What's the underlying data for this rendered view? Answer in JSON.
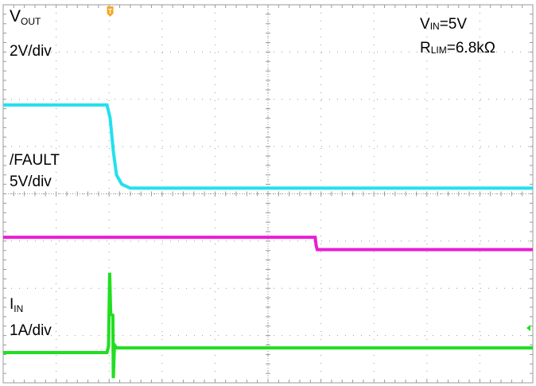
{
  "colors": {
    "vout": "#22E1EE",
    "fault": "#E81ED4",
    "iin": "#21DE21",
    "grid": "#9A9A9A",
    "trigger": "#F5A623"
  },
  "annotations": {
    "vout_main": "V",
    "vout_sub": "OUT",
    "vout_scale": "2V/div",
    "fault_name": "/FAULT",
    "fault_scale": "5V/div",
    "iin_main": "I",
    "iin_sub": "IN",
    "iin_scale": "1A/div",
    "vin_main": "V",
    "vin_sub": "IN",
    "vin_value": "=5V",
    "rlim_main": "R",
    "rlim_sub": "LIM",
    "rlim_value": "=6.8kΩ"
  },
  "chart_data": {
    "type": "line",
    "x_divisions": 10,
    "y_divisions": 8,
    "grid": true,
    "trigger_marker": "T",
    "series": [
      {
        "name": "VOUT",
        "scale": "2V/div",
        "points": [
          [
            0,
            5.88
          ],
          [
            1.96,
            5.88
          ],
          [
            2.02,
            5.6
          ],
          [
            2.08,
            4.9
          ],
          [
            2.14,
            4.4
          ],
          [
            2.24,
            4.2
          ],
          [
            2.4,
            4.12
          ],
          [
            10,
            4.12
          ]
        ]
      },
      {
        "name": "/FAULT",
        "scale": "5V/div",
        "points": [
          [
            0,
            3.08
          ],
          [
            5.89,
            3.08
          ],
          [
            5.91,
            2.9
          ],
          [
            5.93,
            2.82
          ],
          [
            10,
            2.82
          ]
        ]
      },
      {
        "name": "IIN",
        "scale": "1A/div",
        "points": [
          [
            0,
            0.64
          ],
          [
            1.96,
            0.64
          ],
          [
            1.99,
            0.78
          ],
          [
            2.01,
            2.33
          ],
          [
            2.03,
            1.45
          ],
          [
            2.07,
            1.43
          ],
          [
            2.08,
            0.1
          ],
          [
            2.1,
            0.8
          ],
          [
            2.14,
            0.74
          ],
          [
            10,
            0.74
          ]
        ]
      }
    ]
  }
}
